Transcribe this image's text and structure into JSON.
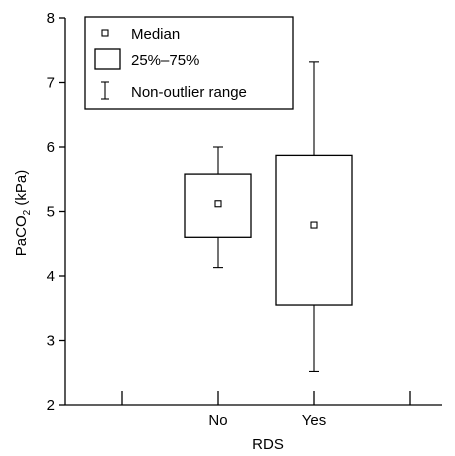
{
  "chart_data": {
    "type": "box",
    "xlabel": "RDS",
    "ylabel": {
      "pre": "Pa",
      "mid": "CO",
      "sub": "2",
      "post": " (kPa)"
    },
    "ylim": [
      2,
      8
    ],
    "yticks": [
      "2",
      "3",
      "4",
      "5",
      "6",
      "7",
      "8"
    ],
    "categories": [
      "No",
      "Yes"
    ],
    "boxes": [
      {
        "category": "No",
        "min": 4.13,
        "q1": 4.6,
        "median": 5.12,
        "q3": 5.58,
        "max": 6.0
      },
      {
        "category": "Yes",
        "min": 2.52,
        "q1": 3.55,
        "median": 4.79,
        "q3": 5.87,
        "max": 7.32
      }
    ],
    "legend": {
      "position": "top-left",
      "items": [
        {
          "symbol": "median-square",
          "label": "Median"
        },
        {
          "symbol": "box",
          "label": "25%–75%"
        },
        {
          "symbol": "whisker",
          "label": "Non-outlier range"
        }
      ]
    },
    "grid": false
  }
}
